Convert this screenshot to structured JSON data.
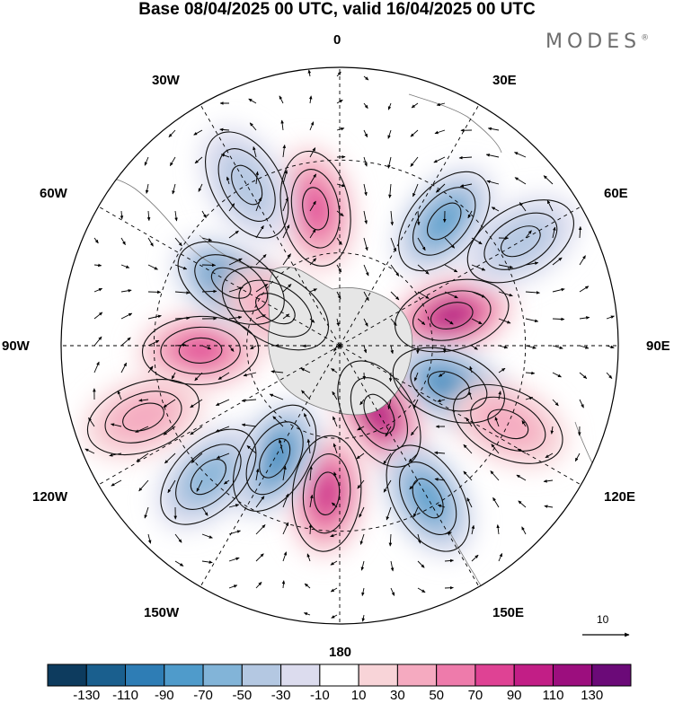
{
  "title": "Base 08/04/2025 00 UTC, valid 16/04/2025 00 UTC",
  "brand": "MODES",
  "brand_mark": "®",
  "longitude_labels": {
    "lon_0": "0",
    "lon_30e": "30E",
    "lon_60e": "60E",
    "lon_90e": "90E",
    "lon_120e": "120E",
    "lon_150e": "150E",
    "lon_180": "180",
    "lon_150w": "150W",
    "lon_120w": "120W",
    "lon_90w": "90W",
    "lon_60w": "60W",
    "lon_30w": "30W"
  },
  "vector_scale_label": "10",
  "colorbar": {
    "colors": [
      "#0d3b5e",
      "#1a5f8e",
      "#2e7db5",
      "#4f9bcb",
      "#82b4d8",
      "#b4c8e2",
      "#dcdcee",
      "#ffffff",
      "#f8d4d8",
      "#f5aac0",
      "#ee7bab",
      "#df4294",
      "#c21e86",
      "#9c0e7e",
      "#6b0a78"
    ],
    "labels": [
      "-130",
      "-110",
      "-90",
      "-70",
      "-50",
      "-30",
      "-10",
      "10",
      "30",
      "50",
      "70",
      "90",
      "110",
      "130"
    ]
  },
  "anomaly_blobs": [
    {
      "lon": 350,
      "lat_colat": 30,
      "value": 75
    },
    {
      "lon": 40,
      "lat_colat": 35,
      "value": -75
    },
    {
      "lon": 75,
      "lat_colat": 25,
      "value": 115
    },
    {
      "lon": 110,
      "lat_colat": 25,
      "value": -95
    },
    {
      "lon": 150,
      "lat_colat": 17,
      "value": 110
    },
    {
      "lon": 185,
      "lat_colat": 32,
      "value": 95
    },
    {
      "lon": 150,
      "lat_colat": 38,
      "value": -75
    },
    {
      "lon": 210,
      "lat_colat": 28,
      "value": -95
    },
    {
      "lon": 225,
      "lat_colat": 40,
      "value": -55
    },
    {
      "lon": 268,
      "lat_colat": 30,
      "value": 70
    },
    {
      "lon": 300,
      "lat_colat": 27,
      "value": -95
    },
    {
      "lon": 330,
      "lat_colat": 40,
      "value": -40
    },
    {
      "lon": 300,
      "lat_colat": 16,
      "value": 40
    },
    {
      "lon": 115,
      "lat_colat": 40,
      "value": 40
    },
    {
      "lon": 250,
      "lat_colat": 45,
      "value": 35
    },
    {
      "lon": 60,
      "lat_colat": 45,
      "value": -30
    }
  ]
}
